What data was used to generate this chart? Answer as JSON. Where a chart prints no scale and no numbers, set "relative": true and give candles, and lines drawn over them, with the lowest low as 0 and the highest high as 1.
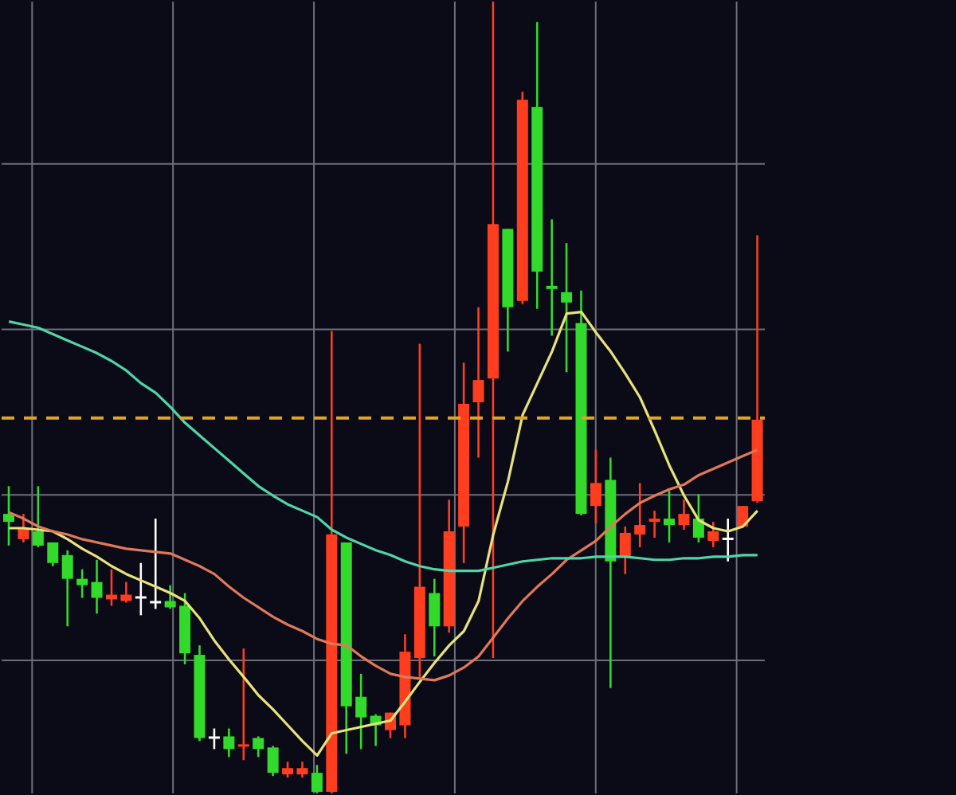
{
  "chart_data": {
    "type": "candlestick",
    "relative": true,
    "tick_labels": false,
    "grid": true,
    "categories": [
      null,
      null,
      null,
      null,
      null,
      null,
      null,
      null,
      null,
      null,
      null,
      null,
      null,
      null,
      null,
      null,
      null,
      null,
      null,
      null,
      null,
      null,
      null,
      null,
      null,
      null,
      null,
      null,
      null,
      null,
      null,
      null,
      null,
      null,
      null,
      null,
      null,
      null,
      null,
      null,
      null,
      null,
      null,
      null,
      null,
      null,
      null,
      null,
      null,
      null,
      null,
      null
    ],
    "ohlc": [
      [
        0.353,
        0.388,
        0.313,
        0.343
      ],
      [
        0.321,
        0.353,
        0.317,
        0.335
      ],
      [
        0.331,
        0.388,
        0.311,
        0.313
      ],
      [
        0.317,
        0.317,
        0.287,
        0.291
      ],
      [
        0.301,
        0.307,
        0.211,
        0.271
      ],
      [
        0.271,
        0.283,
        0.247,
        0.263
      ],
      [
        0.267,
        0.295,
        0.227,
        0.247
      ],
      [
        0.245,
        0.283,
        0.237,
        0.251
      ],
      [
        0.243,
        0.267,
        0.241,
        0.251
      ],
      [
        0.249,
        0.291,
        0.225,
        0.249
      ],
      [
        0.243,
        0.347,
        0.233,
        0.243
      ],
      [
        0.243,
        0.263,
        0.233,
        0.235
      ],
      [
        0.237,
        0.253,
        0.163,
        0.177
      ],
      [
        0.175,
        0.187,
        0.066,
        0.07
      ],
      [
        0.072,
        0.082,
        0.056,
        0.072
      ],
      [
        0.072,
        0.082,
        0.046,
        0.056
      ],
      [
        0.06,
        0.183,
        0.042,
        0.062
      ],
      [
        0.07,
        0.072,
        0.046,
        0.056
      ],
      [
        0.058,
        0.06,
        0.022,
        0.026
      ],
      [
        0.024,
        0.04,
        0.02,
        0.032
      ],
      [
        0.024,
        0.04,
        0.02,
        0.032
      ],
      [
        0.026,
        0.036,
        0,
        0.002
      ],
      [
        0.002,
        0.584,
        0,
        0.327
      ],
      [
        0.317,
        0.317,
        0.05,
        0.11
      ],
      [
        0.122,
        0.151,
        0.056,
        0.096
      ],
      [
        0.098,
        0.1,
        0.06,
        0.086
      ],
      [
        0.08,
        0.102,
        0.07,
        0.102
      ],
      [
        0.086,
        0.201,
        0.07,
        0.179
      ],
      [
        0.171,
        0.568,
        0.147,
        0.261
      ],
      [
        0.253,
        0.271,
        0.173,
        0.211
      ],
      [
        0.211,
        0.371,
        0.203,
        0.331
      ],
      [
        0.337,
        0.544,
        0.291,
        0.492
      ],
      [
        0.494,
        0.614,
        0.424,
        0.522
      ],
      [
        0.524,
        1,
        0.171,
        0.719
      ],
      [
        0.713,
        0.713,
        0.558,
        0.614
      ],
      [
        0.622,
        0.886,
        0.618,
        0.876
      ],
      [
        0.867,
        0.974,
        0.612,
        0.659
      ],
      [
        0.641,
        0.725,
        0.578,
        0.637
      ],
      [
        0.633,
        0.695,
        0.532,
        0.62
      ],
      [
        0.594,
        0.635,
        0.351,
        0.353
      ],
      [
        0.363,
        0.434,
        0.341,
        0.392
      ],
      [
        0.396,
        0.424,
        0.133,
        0.293
      ],
      [
        0.299,
        0.337,
        0.277,
        0.329
      ],
      [
        0.327,
        0.392,
        0.311,
        0.339
      ],
      [
        0.343,
        0.357,
        0.323,
        0.347
      ],
      [
        0.347,
        0.382,
        0.317,
        0.339
      ],
      [
        0.339,
        0.371,
        0.333,
        0.353
      ],
      [
        0.347,
        0.378,
        0.317,
        0.323
      ],
      [
        0.319,
        0.343,
        0.311,
        0.331
      ],
      [
        0.323,
        0.347,
        0.293,
        0.323
      ],
      [
        0.337,
        0.363,
        0.337,
        0.363
      ],
      [
        0.369,
        0.705,
        0.367,
        0.472
      ]
    ],
    "colors": [
      "#33d92b",
      "#ff3d1f",
      "#33d92b",
      "#33d92b",
      "#33d92b",
      "#33d92b",
      "#33d92b",
      "#ff3d1f",
      "#ff3d1f",
      "#ffffff",
      "#ffffff",
      "#33d92b",
      "#33d92b",
      "#33d92b",
      "#ffffff",
      "#33d92b",
      "#ff3d1f",
      "#33d92b",
      "#33d92b",
      "#ff3d1f",
      "#ff3d1f",
      "#33d92b",
      "#ff3d1f",
      "#33d92b",
      "#33d92b",
      "#33d92b",
      "#ff3d1f",
      "#ff3d1f",
      "#ff3d1f",
      "#33d92b",
      "#ff3d1f",
      "#ff3d1f",
      "#ff3d1f",
      "#ff3d1f",
      "#33d92b",
      "#ff3d1f",
      "#33d92b",
      "#33d92b",
      "#33d92b",
      "#33d92b",
      "#ff3d1f",
      "#33d92b",
      "#ff3d1f",
      "#ff3d1f",
      "#ff3d1f",
      "#33d92b",
      "#ff3d1f",
      "#33d92b",
      "#ff3d1f",
      "#ffffff",
      "#ff3d1f",
      "#ff3d1f"
    ],
    "series": [
      {
        "type": "line",
        "color": "#e8e27a",
        "values": [
          0.335,
          0.335,
          0.333,
          0.331,
          0.321,
          0.309,
          0.299,
          0.287,
          0.277,
          0.269,
          0.261,
          0.253,
          0.243,
          0.221,
          0.193,
          0.169,
          0.147,
          0.124,
          0.106,
          0.086,
          0.066,
          0.048,
          0.076,
          0.08,
          0.084,
          0.088,
          0.092,
          0.116,
          0.141,
          0.165,
          0.187,
          0.205,
          0.243,
          0.327,
          0.394,
          0.478,
          0.518,
          0.558,
          0.606,
          0.608,
          0.582,
          0.558,
          0.53,
          0.5,
          0.458,
          0.414,
          0.376,
          0.345,
          0.335,
          0.331,
          0.337,
          0.357
        ]
      },
      {
        "type": "line",
        "color": "#e0785a",
        "values": [
          0.355,
          0.347,
          0.337,
          0.331,
          0.327,
          0.321,
          0.317,
          0.313,
          0.309,
          0.307,
          0.305,
          0.303,
          0.295,
          0.287,
          0.277,
          0.261,
          0.247,
          0.235,
          0.223,
          0.213,
          0.205,
          0.195,
          0.189,
          0.187,
          0.173,
          0.161,
          0.151,
          0.147,
          0.145,
          0.143,
          0.149,
          0.159,
          0.173,
          0.197,
          0.221,
          0.243,
          0.261,
          0.277,
          0.295,
          0.307,
          0.319,
          0.337,
          0.353,
          0.367,
          0.376,
          0.384,
          0.39,
          0.402,
          0.41,
          0.418,
          0.426,
          0.434
        ]
      },
      {
        "type": "line",
        "color": "#4fd6a8",
        "values": [
          0.596,
          0.592,
          0.588,
          0.58,
          0.572,
          0.564,
          0.556,
          0.546,
          0.534,
          0.518,
          0.506,
          0.488,
          0.468,
          0.452,
          0.436,
          0.42,
          0.404,
          0.388,
          0.376,
          0.365,
          0.357,
          0.349,
          0.333,
          0.323,
          0.315,
          0.307,
          0.301,
          0.293,
          0.287,
          0.283,
          0.281,
          0.281,
          0.281,
          0.285,
          0.289,
          0.293,
          0.295,
          0.297,
          0.297,
          0.297,
          0.299,
          0.299,
          0.299,
          0.297,
          0.295,
          0.295,
          0.297,
          0.297,
          0.299,
          0.299,
          0.301,
          0.301
        ]
      }
    ],
    "ref_lines": [
      {
        "axis": "y",
        "value": 0.474,
        "color": "#e0a526",
        "line_style": "dashed"
      }
    ]
  }
}
